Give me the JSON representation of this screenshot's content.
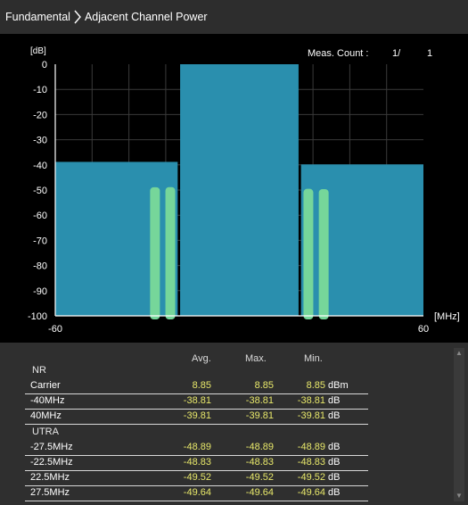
{
  "breadcrumb": {
    "root": "Fundamental",
    "current": "Adjacent Channel Power"
  },
  "chart_data": {
    "type": "bar",
    "y_unit_label": "[dB]",
    "x_unit_label": "[MHz]",
    "xlim": [
      -60,
      60
    ],
    "ylim": [
      -100,
      0
    ],
    "x_tick_labels": [
      "-60",
      "60"
    ],
    "y_tick_labels": [
      "0",
      "-10",
      "-20",
      "-30",
      "-40",
      "-50",
      "-60",
      "-70",
      "-80",
      "-90",
      "-100"
    ],
    "grid": true,
    "meas_count_label": "Meas. Count :",
    "meas_count_value": "1/",
    "meas_count_total": "1",
    "nr_channels": [
      {
        "x_from": -60.0,
        "x_to": -20.1,
        "level": -38.81
      },
      {
        "x_from": -19.3,
        "x_to": 19.3,
        "level": 0
      },
      {
        "x_from": 20.1,
        "x_to": 60.0,
        "level": -39.81
      }
    ],
    "utra_channels": [
      {
        "center": -27.5,
        "level": -48.89
      },
      {
        "center": -22.5,
        "level": -48.83
      },
      {
        "center": 22.5,
        "level": -49.52
      },
      {
        "center": 27.5,
        "level": -49.64
      }
    ],
    "colors": {
      "nr": "#2a8fae",
      "utra": "#76d69a",
      "grid": "#3a3a3a",
      "axis": "#ffffff"
    }
  },
  "table": {
    "col_avg": "Avg.",
    "col_max": "Max.",
    "col_min": "Min.",
    "groups": [
      {
        "label": "NR",
        "rows": [
          {
            "label": "Carrier",
            "avg": "8.85",
            "max": "8.85",
            "min": "8.85",
            "unit": "dBm"
          },
          {
            "label": "-40MHz",
            "avg": "-38.81",
            "max": "-38.81",
            "min": "-38.81",
            "unit": "dB"
          },
          {
            "label": "40MHz",
            "avg": "-39.81",
            "max": "-39.81",
            "min": "-39.81",
            "unit": "dB"
          }
        ]
      },
      {
        "label": "UTRA",
        "rows": [
          {
            "label": "-27.5MHz",
            "avg": "-48.89",
            "max": "-48.89",
            "min": "-48.89",
            "unit": "dB"
          },
          {
            "label": "-22.5MHz",
            "avg": "-48.83",
            "max": "-48.83",
            "min": "-48.83",
            "unit": "dB"
          },
          {
            "label": "22.5MHz",
            "avg": "-49.52",
            "max": "-49.52",
            "min": "-49.52",
            "unit": "dB"
          },
          {
            "label": "27.5MHz",
            "avg": "-49.64",
            "max": "-49.64",
            "min": "-49.64",
            "unit": "dB"
          }
        ]
      }
    ]
  }
}
